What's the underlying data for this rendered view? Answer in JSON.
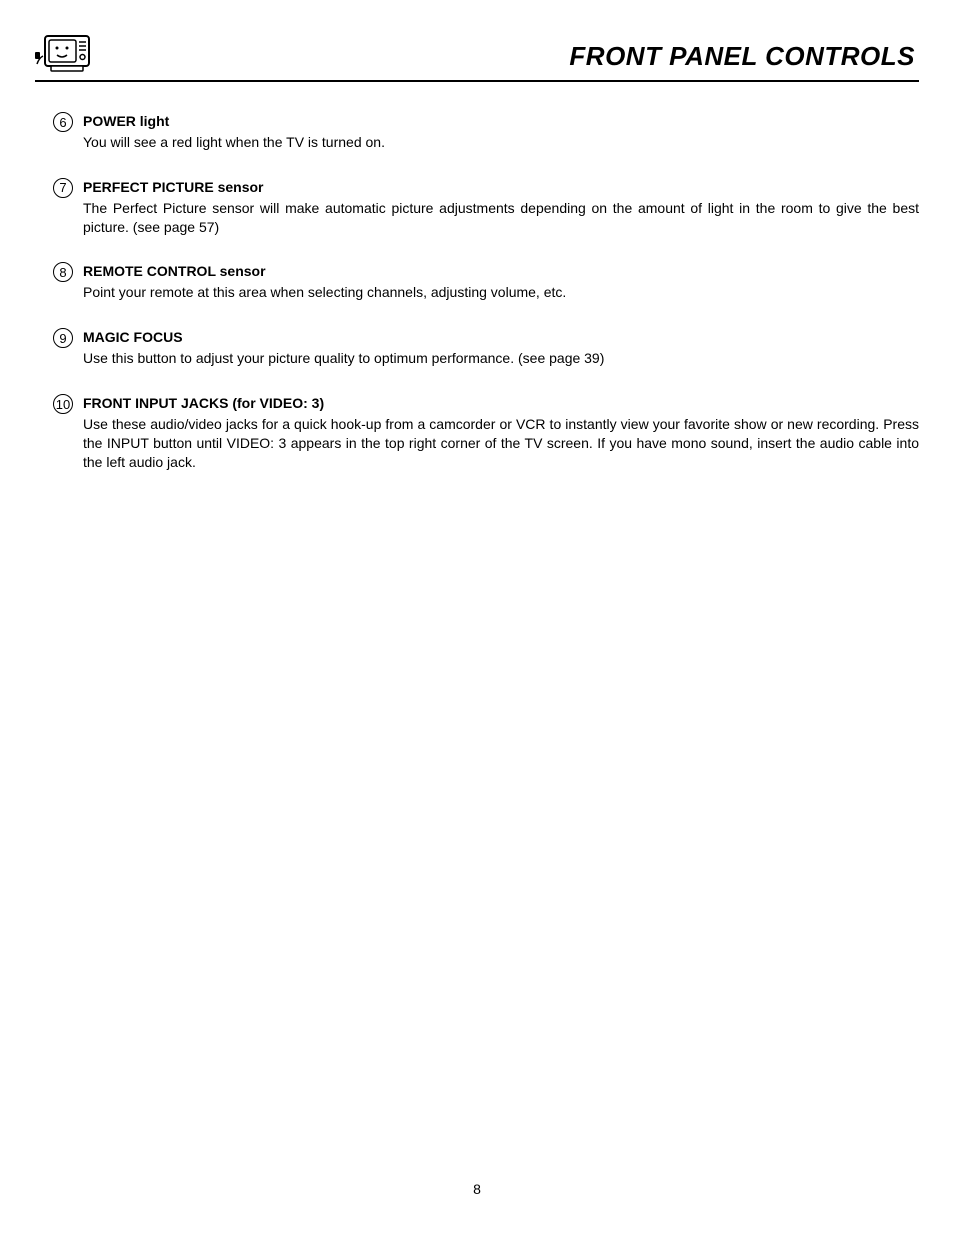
{
  "page": {
    "title": "FRONT PANEL CONTROLS",
    "number": "8",
    "background_color": "#ffffff",
    "text_color": "#000000",
    "title_fontsize": 26,
    "body_fontsize": 14,
    "underline_width": 2.5
  },
  "sections": [
    {
      "num": "6",
      "heading": "POWER light",
      "text": "You will see a red light when the TV is turned on."
    },
    {
      "num": "7",
      "heading": "PERFECT PICTURE sensor",
      "text": "The Perfect Picture sensor will make automatic picture adjustments depending on the amount of light in the room to give the best picture. (see page 57)"
    },
    {
      "num": "8",
      "heading": "REMOTE CONTROL sensor",
      "text": "Point your remote at this area when selecting channels, adjusting volume, etc."
    },
    {
      "num": "9",
      "heading": "MAGIC FOCUS",
      "text": "Use this button to adjust your picture quality to optimum performance. (see page 39)"
    },
    {
      "num": "10",
      "heading": "FRONT INPUT JACKS (for VIDEO: 3)",
      "text": "Use these audio/video jacks for a quick hook-up from a camcorder or VCR to instantly view your favorite show or new recording. Press the INPUT button until VIDEO: 3 appears in the top right corner of the TV screen.  If you have mono sound, insert the audio cable into the left audio jack."
    }
  ]
}
